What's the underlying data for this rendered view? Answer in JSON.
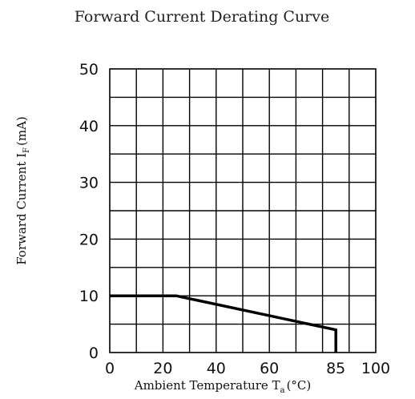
{
  "chart_data": {
    "type": "line",
    "title": "Forward Current Derating Curve",
    "xlabel": {
      "main": "Ambient Temperature T",
      "subscript": "a",
      "unit": "(°C)"
    },
    "ylabel": {
      "main": "Forward Current   I",
      "subscript": "F",
      "unit": "(mA)"
    },
    "xlim": [
      0,
      100
    ],
    "ylim": [
      0,
      50
    ],
    "grid": true,
    "x_ticks": [
      {
        "value": 0,
        "label": "0"
      },
      {
        "value": 20,
        "label": "20"
      },
      {
        "value": 40,
        "label": "40"
      },
      {
        "value": 60,
        "label": "60"
      },
      {
        "value": 85,
        "label": "85"
      },
      {
        "value": 100,
        "label": "100"
      }
    ],
    "y_ticks": [
      {
        "value": 0,
        "label": "0"
      },
      {
        "value": 10,
        "label": "10"
      },
      {
        "value": 20,
        "label": "20"
      },
      {
        "value": 30,
        "label": "30"
      },
      {
        "value": 40,
        "label": "40"
      },
      {
        "value": 50,
        "label": "50"
      }
    ],
    "series": [
      {
        "x": [
          0,
          25,
          85,
          85
        ],
        "y": [
          10,
          10,
          4,
          0
        ]
      }
    ]
  }
}
